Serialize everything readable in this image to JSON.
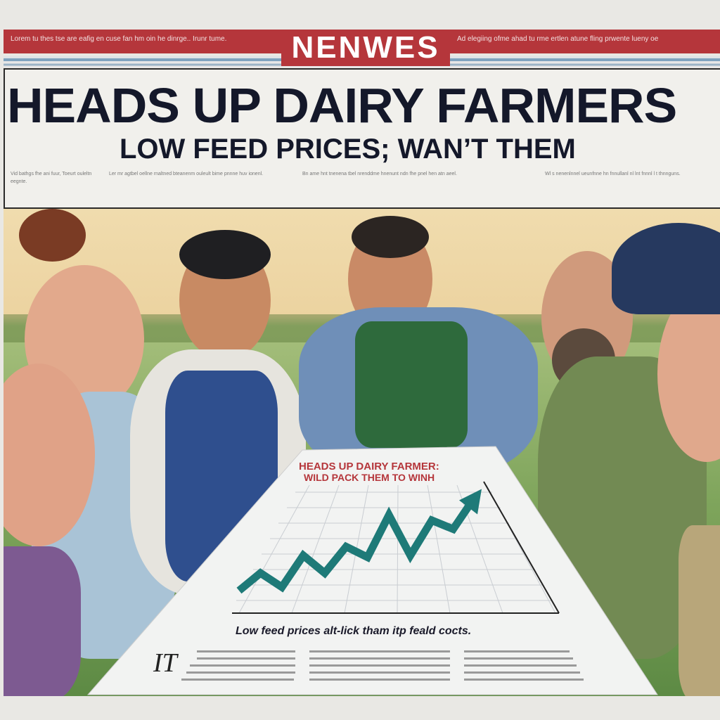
{
  "masthead": {
    "name": "NENWES",
    "left_ticker": "Lorem tu thes tse are eafig en cuse fan hm oin he dinrge.. Irunr tume.",
    "right_ticker": "Ad elegiing ofme ahad tu rme ertlen atune fling prwente lueny oe"
  },
  "headline": "HEADS UP DAIRY FARMERS",
  "subheadline": "LOW FEED PRICES; WAN’T THEM",
  "columns": [
    "Vid bathgs fhe ani fuur, Toeurt ouleltn eegnte.",
    "Ler mr agtbel oellne rnaltned bteanenm ouleult bime pnnne huv ionenl.",
    "Bn ame hnt tnenena tbel nrenddme hnenunt ndn fhe pnel hen atn aeel.",
    "Wl s nenenlnnel ueunfnne hn fnnullanl nl lnt fnnnl l t thnnguns."
  ],
  "paper": {
    "title_line1": "HEADS UP DAIRY FARMER:",
    "title_line2": "WILD PACK THEM TO WINH",
    "caption": "Low feed prices alt-lick tham itp feald cocts.",
    "initial": "IT",
    "colors": {
      "line": "#1e7a78",
      "title": "#b5363b"
    }
  },
  "chart_data": {
    "type": "line",
    "title": "",
    "xlabel": "",
    "ylabel": "",
    "grid": true,
    "x": [
      1,
      2,
      3,
      4,
      5,
      6,
      7,
      8,
      9,
      10,
      11,
      12
    ],
    "values": [
      1,
      2,
      1.2,
      3,
      2,
      3.5,
      2.9,
      5.3,
      3,
      5,
      4.5,
      6.3
    ],
    "ylim": [
      0,
      7
    ],
    "arrow_end": true
  }
}
